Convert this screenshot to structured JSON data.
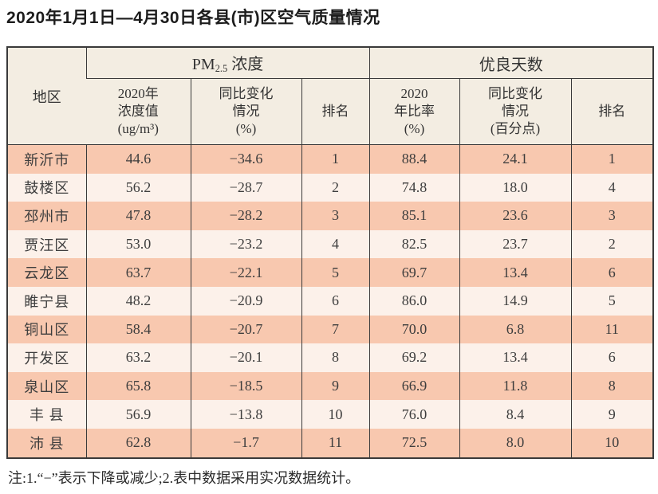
{
  "page": {
    "title": "2020年1月1日—4月30日各县(市)区空气质量情况",
    "note": "注:1.“−”表示下降或减少;2.表中数据采用实况数据统计。"
  },
  "table": {
    "header": {
      "region": "地区",
      "pm25_prefix": "PM",
      "pm25_sub": "2.5",
      "pm25_word": " 浓度",
      "good_days_group": "优良天数",
      "col_conc": "2020年\n浓度值\n(ug/m³)",
      "col_change_pct": "同比变化\n情况\n(%)",
      "col_rank_pm": "排名",
      "col_ratio": "2020\n年比率\n(%)",
      "col_change_pts": "同比变化\n情况\n(百分点)",
      "col_rank_days": "排名"
    },
    "rows": [
      {
        "region": "新沂市",
        "conc": "44.6",
        "change": "−34.6",
        "rank": "1",
        "ratio": "88.4",
        "change2": "24.1",
        "rank2": "1"
      },
      {
        "region": "鼓楼区",
        "conc": "56.2",
        "change": "−28.7",
        "rank": "2",
        "ratio": "74.8",
        "change2": "18.0",
        "rank2": "4"
      },
      {
        "region": "邳州市",
        "conc": "47.8",
        "change": "−28.2",
        "rank": "3",
        "ratio": "85.1",
        "change2": "23.6",
        "rank2": "3"
      },
      {
        "region": "贾汪区",
        "conc": "53.0",
        "change": "−23.2",
        "rank": "4",
        "ratio": "82.5",
        "change2": "23.7",
        "rank2": "2"
      },
      {
        "region": "云龙区",
        "conc": "63.7",
        "change": "−22.1",
        "rank": "5",
        "ratio": "69.7",
        "change2": "13.4",
        "rank2": "6"
      },
      {
        "region": "睢宁县",
        "conc": "48.2",
        "change": "−20.9",
        "rank": "6",
        "ratio": "86.0",
        "change2": "14.9",
        "rank2": "5"
      },
      {
        "region": "铜山区",
        "conc": "58.4",
        "change": "−20.7",
        "rank": "7",
        "ratio": "70.0",
        "change2": "6.8",
        "rank2": "11"
      },
      {
        "region": "开发区",
        "conc": "63.2",
        "change": "−20.1",
        "rank": "8",
        "ratio": "69.2",
        "change2": "13.4",
        "rank2": "6"
      },
      {
        "region": "泉山区",
        "conc": "65.8",
        "change": "−18.5",
        "rank": "9",
        "ratio": "66.9",
        "change2": "11.8",
        "rank2": "8"
      },
      {
        "region": "丰 县",
        "conc": "56.9",
        "change": "−13.8",
        "rank": "10",
        "ratio": "76.0",
        "change2": "8.4",
        "rank2": "9"
      },
      {
        "region": "沛 县",
        "conc": "62.8",
        "change": "−1.7",
        "rank": "11",
        "ratio": "72.5",
        "change2": "8.0",
        "rank2": "10"
      }
    ],
    "columns": [
      "region",
      "conc",
      "change",
      "rank",
      "ratio",
      "change2",
      "rank2"
    ]
  },
  "colors": {
    "row_salmon": "#f8c8af",
    "row_light": "#fcf1ea",
    "header_bg": "#f3ede2",
    "border": "#3a3a3a"
  }
}
